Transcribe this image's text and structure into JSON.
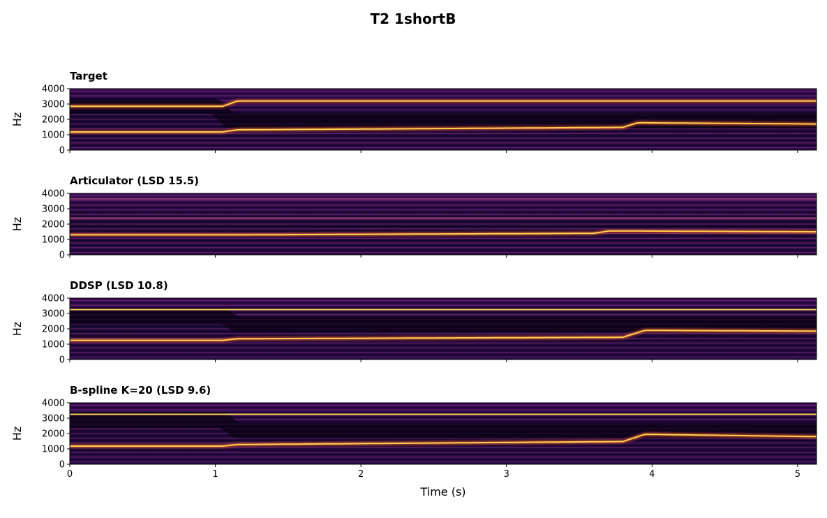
{
  "figure_title": "T2 1shortB",
  "chart_data": [
    {
      "type": "heatmap",
      "title": "Target",
      "ylabel": "Hz",
      "xlabel": "",
      "xlim": [
        0,
        5.13
      ],
      "ylim": [
        0,
        4000
      ],
      "yticks": [
        0,
        1000,
        2000,
        3000,
        4000
      ],
      "xticks": [
        0,
        1,
        2,
        3,
        4,
        5
      ],
      "show_xticklabels": false,
      "colormap": "inferno",
      "formants": [
        {
          "t": [
            0,
            1.0,
            1.1,
            3.8,
            3.9,
            5.13
          ],
          "hz": [
            2850,
            2850,
            1900,
            1900,
            1900,
            1900
          ],
          "band": "dark"
        },
        {
          "t": [
            0,
            1.05,
            1.15,
            3.8,
            3.9,
            5.13
          ],
          "hz": [
            1180,
            1180,
            1320,
            1480,
            1780,
            1700
          ],
          "band": "bright"
        },
        {
          "t": [
            0,
            1.05,
            1.15,
            5.13
          ],
          "hz": [
            2850,
            2850,
            3200,
            3200
          ],
          "band": "bright"
        }
      ]
    },
    {
      "type": "heatmap",
      "title": "Articulator (LSD 15.5)",
      "ylabel": "Hz",
      "xlabel": "",
      "xlim": [
        0,
        5.13
      ],
      "ylim": [
        0,
        4000
      ],
      "yticks": [
        0,
        1000,
        2000,
        3000,
        4000
      ],
      "xticks": [
        0,
        1,
        2,
        3,
        4,
        5
      ],
      "show_xticklabels": false,
      "colormap": "inferno",
      "formants": [
        {
          "t": [
            0,
            1.5,
            5.13
          ],
          "hz": [
            3650,
            3650,
            3650
          ],
          "band": "faint"
        },
        {
          "t": [
            0,
            1.5,
            5.13
          ],
          "hz": [
            2400,
            2400,
            2400
          ],
          "band": "faint"
        },
        {
          "t": [
            0,
            1.2,
            3.6,
            3.7,
            3.9,
            5.13
          ],
          "hz": [
            1300,
            1300,
            1400,
            1550,
            1550,
            1500
          ],
          "band": "bright"
        }
      ]
    },
    {
      "type": "heatmap",
      "title": "DDSP (LSD 10.8)",
      "ylabel": "Hz",
      "xlabel": "",
      "xlim": [
        0,
        5.13
      ],
      "ylim": [
        0,
        4000
      ],
      "yticks": [
        0,
        1000,
        2000,
        3000,
        4000
      ],
      "xticks": [
        0,
        1,
        2,
        3,
        4,
        5
      ],
      "show_xticklabels": false,
      "colormap": "inferno",
      "formants": [
        {
          "t": [
            0,
            1.05,
            1.15,
            3.8,
            3.9,
            5.13
          ],
          "hz": [
            2800,
            2800,
            2300,
            2300,
            2300,
            2300
          ],
          "band": "dark"
        },
        {
          "t": [
            0,
            1.05,
            1.15,
            3.8,
            3.95,
            5.13
          ],
          "hz": [
            1250,
            1250,
            1350,
            1450,
            1900,
            1850
          ],
          "band": "bright"
        },
        {
          "t": [
            0,
            5.13
          ],
          "hz": [
            3250,
            3250
          ],
          "band": "bright"
        }
      ]
    },
    {
      "type": "heatmap",
      "title": "B-spline K=20 (LSD 9.6)",
      "ylabel": "Hz",
      "xlabel": "Time (s)",
      "xlim": [
        0,
        5.13
      ],
      "ylim": [
        0,
        4000
      ],
      "yticks": [
        0,
        1000,
        2000,
        3000,
        4000
      ],
      "xticks": [
        0,
        1,
        2,
        3,
        4,
        5
      ],
      "show_xticklabels": true,
      "colormap": "inferno",
      "formants": [
        {
          "t": [
            0,
            1.05,
            1.15,
            3.8,
            3.9,
            5.13
          ],
          "hz": [
            2850,
            2850,
            2200,
            2200,
            2200,
            2200
          ],
          "band": "dark"
        },
        {
          "t": [
            0,
            1.05,
            1.15,
            3.8,
            3.95,
            5.13
          ],
          "hz": [
            1180,
            1180,
            1280,
            1480,
            1950,
            1800
          ],
          "band": "bright"
        },
        {
          "t": [
            0,
            5.13
          ],
          "hz": [
            3250,
            3250
          ],
          "band": "bright"
        }
      ]
    }
  ]
}
